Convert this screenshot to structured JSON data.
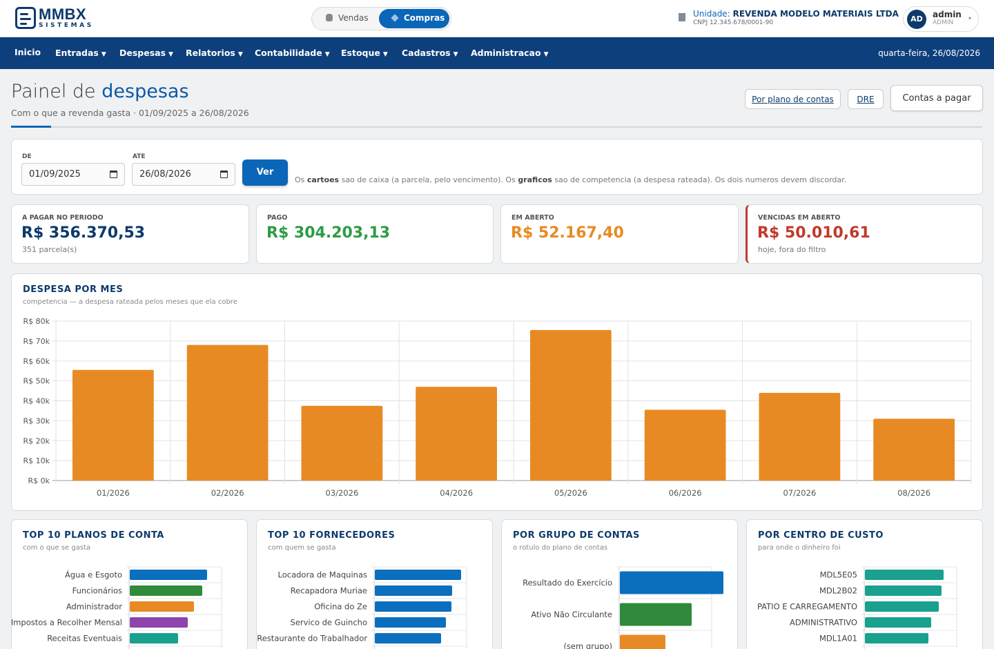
{
  "brand": {
    "name": "MMBX",
    "sub": "SISTEMAS"
  },
  "mode_switch": {
    "vendas": "Vendas",
    "compras": "Compras",
    "active": "Compras"
  },
  "unit": {
    "label": "Unidade:",
    "name": "REVENDA MODELO MATERIAIS LTDA",
    "cnpj": "CNPJ 12.345.678/0001-90"
  },
  "user": {
    "initials": "AD",
    "name": "admin",
    "role": "ADMIN"
  },
  "nav": {
    "items": [
      "Inicio",
      "Entradas",
      "Despesas",
      "Relatorios",
      "Contabilidade",
      "Estoque",
      "Cadastros",
      "Administracao"
    ],
    "date": "quarta-feira, 26/08/2026"
  },
  "page": {
    "title_prefix": "Painel de",
    "title_strong": "despesas",
    "subtitle": "Com o que a revenda gasta · 01/09/2025 a 26/08/2026"
  },
  "header_buttons": {
    "plano": "Por plano de contas",
    "dre": "DRE",
    "contas": "Contas a pagar"
  },
  "filter": {
    "de_label": "DE",
    "de_value": "01/09/2025",
    "ate_label": "ATE",
    "ate_value": "26/08/2026",
    "button": "Ver",
    "note": {
      "p1": "Os ",
      "b1": "cartoes",
      "p2": " sao de caixa (a parcela, pelo vencimento). Os ",
      "b2": "graficos",
      "p3": " sao de competencia (a despesa rateada). Os dois numeros devem discordar."
    }
  },
  "kpis": [
    {
      "label": "A PAGAR NO PERIODO",
      "value": "R$ 356.370,53",
      "sub": "351 parcela(s)",
      "color": "#0d3a6b"
    },
    {
      "label": "PAGO",
      "value": "R$ 304.203,13",
      "sub": "",
      "color": "#2e9b45"
    },
    {
      "label": "EM ABERTO",
      "value": "R$ 52.167,40",
      "sub": "",
      "color": "#e88a23"
    },
    {
      "label": "VENCIDAS EM ABERTO",
      "value": "R$ 50.010,61",
      "sub": "hoje, fora do filtro",
      "color": "#c0392b"
    }
  ],
  "monthly": {
    "title": "DESPESA POR MES",
    "subtitle": "competencia — a despesa rateada pelos meses que ela cobre"
  },
  "chart_data": [
    {
      "type": "bar",
      "title": "DESPESA POR MES",
      "categories": [
        "01/2026",
        "02/2026",
        "03/2026",
        "04/2026",
        "05/2026",
        "06/2026",
        "07/2026",
        "08/2026"
      ],
      "values": [
        55500,
        68000,
        37500,
        47000,
        75500,
        35500,
        44000,
        31000
      ],
      "yticks": [
        "R$ 80k",
        "R$ 70k",
        "R$ 60k",
        "R$ 50k",
        "R$ 40k",
        "R$ 30k",
        "R$ 20k",
        "R$ 10k",
        "R$ 0k"
      ],
      "ylim": [
        0,
        80000
      ],
      "grid": true,
      "color": "#e88a23"
    },
    {
      "type": "bar",
      "orientation": "horizontal",
      "title": "TOP 10 PLANOS DE CONTA",
      "subtitle": "com o que se gasta",
      "categories": [
        "Água e Esgoto",
        "Funcionários",
        "Administrador",
        "Impostos a Recolher Mensal",
        "Receitas Eventuais"
      ],
      "values": [
        112,
        105,
        93,
        84,
        70
      ],
      "colors": [
        "#0b6fbe",
        "#2f8a3c",
        "#e88a23",
        "#8e44ad",
        "#1aa08e"
      ]
    },
    {
      "type": "bar",
      "orientation": "horizontal",
      "title": "TOP 10 FORNECEDORES",
      "subtitle": "com quem se gasta",
      "categories": [
        "Locadora de Maquinas",
        "Recapadora Muriae",
        "Oficina do Ze",
        "Servico de Guincho",
        "Restaurante do Trabalhador"
      ],
      "values": [
        125,
        112,
        111,
        103,
        96
      ],
      "colors": [
        "#0b6fbe",
        "#0b6fbe",
        "#0b6fbe",
        "#0b6fbe",
        "#0b6fbe"
      ]
    },
    {
      "type": "bar",
      "orientation": "horizontal",
      "title": "POR GRUPO DE CONTAS",
      "subtitle": "o rotulo do plano de contas",
      "categories": [
        "Resultado do Exercício",
        "Ativo Não Circulante",
        "(sem grupo)"
      ],
      "values": [
        150,
        104,
        66
      ],
      "colors": [
        "#0b6fbe",
        "#2f8a3c",
        "#e88a23"
      ]
    },
    {
      "type": "bar",
      "orientation": "horizontal",
      "title": "POR CENTRO DE CUSTO",
      "subtitle": "para onde o dinheiro foi",
      "categories": [
        "MDL5E05",
        "MDL2B02",
        "PATIO E CARREGAMENTO",
        "ADMINISTRATIVO",
        "MDL1A01"
      ],
      "values": [
        114,
        111,
        107,
        96,
        92
      ],
      "colors": [
        "#1aa08e",
        "#1aa08e",
        "#1aa08e",
        "#1aa08e",
        "#1aa08e"
      ]
    }
  ]
}
